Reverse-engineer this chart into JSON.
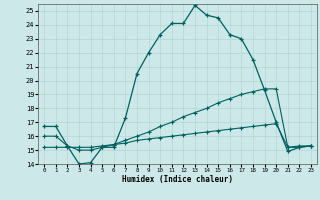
{
  "xlabel": "Humidex (Indice chaleur)",
  "xlim": [
    -0.5,
    23.5
  ],
  "ylim": [
    14,
    25.5
  ],
  "yticks": [
    14,
    15,
    16,
    17,
    18,
    19,
    20,
    21,
    22,
    23,
    24,
    25
  ],
  "xticks": [
    0,
    1,
    2,
    3,
    4,
    5,
    6,
    7,
    8,
    9,
    10,
    11,
    12,
    13,
    14,
    15,
    16,
    17,
    18,
    19,
    20,
    21,
    22,
    23
  ],
  "bg_color": "#cce8e8",
  "grid_color": "#aad4d4",
  "line_color": "#006060",
  "line1_x": [
    0,
    1,
    2,
    3,
    4,
    5,
    6,
    7,
    8,
    9,
    10,
    11,
    12,
    13,
    14,
    15,
    16,
    17,
    18,
    19,
    20,
    21,
    22,
    23
  ],
  "line1_y": [
    16.7,
    16.7,
    15.3,
    14.0,
    14.1,
    15.2,
    15.2,
    17.3,
    20.5,
    22.0,
    23.3,
    24.1,
    24.1,
    25.4,
    24.7,
    24.5,
    23.3,
    23.0,
    21.5,
    19.3,
    17.0,
    14.9,
    15.2,
    15.3
  ],
  "line2_x": [
    0,
    1,
    2,
    3,
    4,
    5,
    6,
    7,
    8,
    9,
    10,
    11,
    12,
    13,
    14,
    15,
    16,
    17,
    18,
    19,
    20,
    21,
    22,
    23
  ],
  "line2_y": [
    16.0,
    16.0,
    15.3,
    15.0,
    15.0,
    15.2,
    15.4,
    15.7,
    16.0,
    16.3,
    16.7,
    17.0,
    17.4,
    17.7,
    18.0,
    18.4,
    18.7,
    19.0,
    19.2,
    19.4,
    19.4,
    15.2,
    15.3,
    15.3
  ],
  "line3_x": [
    0,
    1,
    2,
    3,
    4,
    5,
    6,
    7,
    8,
    9,
    10,
    11,
    12,
    13,
    14,
    15,
    16,
    17,
    18,
    19,
    20,
    21,
    22,
    23
  ],
  "line3_y": [
    15.2,
    15.2,
    15.2,
    15.2,
    15.2,
    15.3,
    15.4,
    15.5,
    15.7,
    15.8,
    15.9,
    16.0,
    16.1,
    16.2,
    16.3,
    16.4,
    16.5,
    16.6,
    16.7,
    16.8,
    16.9,
    15.2,
    15.2,
    15.3
  ]
}
